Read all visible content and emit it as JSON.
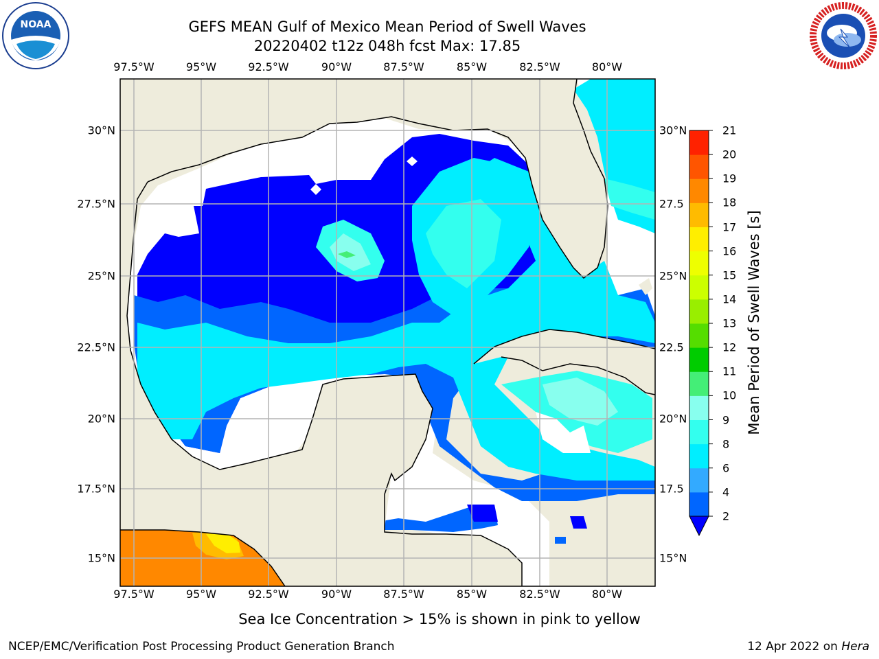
{
  "title": {
    "line1": "GEFS MEAN Gulf of Mexico Mean Period of Swell Waves",
    "line2": "20220402 t12z 048h fcst   Max: 17.85"
  },
  "logos": {
    "left": {
      "name": "NOAA",
      "ring_text": "NATIONAL OCEANIC AND ATMOSPHERIC ADMINISTRATION · U.S. DEPARTMENT OF COMMERCE"
    },
    "right": {
      "name": "NATIONAL WEATHER SERVICE"
    }
  },
  "map": {
    "lon_ticks": [
      "97.5°W",
      "95°W",
      "92.5°W",
      "90°W",
      "87.5°W",
      "85°W",
      "82.5°W",
      "80°W"
    ],
    "lat_ticks_left": [
      "30°N",
      "27.5°N",
      "25°N",
      "22.5°N",
      "20°N",
      "17.5°N",
      "15°N"
    ],
    "lat_ticks_right": [
      "30°N",
      "27.5",
      "25°N",
      "22.5",
      "20°N",
      "17.5",
      "15°N"
    ],
    "land_color": "#eeecdc",
    "grid": "on"
  },
  "colorbar": {
    "label": "Mean Period of Swell Waves [s]",
    "ticks": [
      "2",
      "4",
      "6",
      "8",
      "9",
      "10",
      "11",
      "12",
      "13",
      "14",
      "15",
      "16",
      "17",
      "18",
      "19",
      "20",
      "21"
    ],
    "colors": [
      "#0000ff",
      "#0066ff",
      "#33aaff",
      "#00eeff",
      "#33ffee",
      "#88ffee",
      "#44ee77",
      "#00cc00",
      "#55dd00",
      "#99ee00",
      "#ccff00",
      "#eeff00",
      "#ffee00",
      "#ffbb00",
      "#ff8800",
      "#ff5500",
      "#ff2200",
      "#ff0000"
    ]
  },
  "footer": {
    "sea_ice_note": "Sea Ice Concentration > 15% is shown in pink to yellow",
    "credit": "NCEP/EMC/Verification Post Processing Product Generation Branch",
    "date": "12 Apr 2022 on",
    "machine": "Hera"
  }
}
